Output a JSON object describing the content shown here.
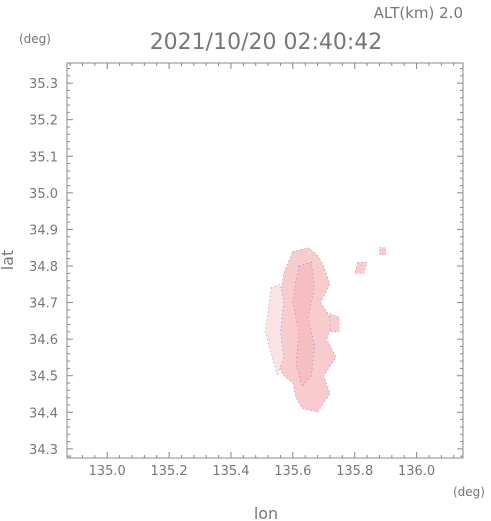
{
  "header": {
    "altitude_label": "ALT(km) 2.0",
    "timestamp": "2021/10/20 02:40:42"
  },
  "colors": {
    "frame": "#888888",
    "text": "#777777",
    "echo_light": "#fbe3e3",
    "echo_main": "#f8cccc",
    "echo_dense": "#f5bfc2",
    "edge_pixels": "#6a5acd"
  },
  "chart_data": {
    "type": "heatmap",
    "title": "",
    "xlabel": "lon",
    "ylabel": "lat",
    "x_unit": "(deg)",
    "y_unit": "(deg)",
    "xlim": [
      134.87,
      136.15
    ],
    "ylim": [
      34.275,
      35.355
    ],
    "x_ticks": [
      135.0,
      135.2,
      135.4,
      135.6,
      135.8,
      136.0
    ],
    "x_tick_labels": [
      "135.0",
      "135.2",
      "135.4",
      "135.6",
      "135.8",
      "136.0"
    ],
    "y_ticks": [
      34.3,
      34.4,
      34.5,
      34.6,
      34.7,
      34.8,
      34.9,
      35.0,
      35.1,
      35.2,
      35.3
    ],
    "y_tick_labels": [
      "34.3",
      "34.4",
      "34.5",
      "34.6",
      "34.7",
      "34.8",
      "34.9",
      "35.0",
      "35.1",
      "35.2",
      "35.3"
    ],
    "minor_ticks_per_major": 4,
    "grid": false,
    "echo_regions": [
      {
        "name": "main-echo",
        "level": "main",
        "polygon": [
          [
            135.6,
            34.84
          ],
          [
            135.65,
            34.85
          ],
          [
            135.68,
            34.83
          ],
          [
            135.7,
            34.8
          ],
          [
            135.72,
            34.75
          ],
          [
            135.69,
            34.7
          ],
          [
            135.73,
            34.65
          ],
          [
            135.71,
            34.6
          ],
          [
            135.74,
            34.55
          ],
          [
            135.7,
            34.5
          ],
          [
            135.72,
            34.45
          ],
          [
            135.68,
            34.4
          ],
          [
            135.63,
            34.41
          ],
          [
            135.61,
            34.44
          ],
          [
            135.6,
            34.48
          ],
          [
            135.57,
            34.5
          ],
          [
            135.54,
            34.55
          ],
          [
            135.53,
            34.6
          ],
          [
            135.54,
            34.65
          ],
          [
            135.56,
            34.72
          ],
          [
            135.57,
            34.78
          ],
          [
            135.59,
            34.82
          ]
        ]
      },
      {
        "name": "west-light-echo",
        "level": "light",
        "polygon": [
          [
            135.53,
            34.74
          ],
          [
            135.56,
            34.75
          ],
          [
            135.57,
            34.7
          ],
          [
            135.56,
            34.62
          ],
          [
            135.57,
            34.55
          ],
          [
            135.55,
            34.5
          ],
          [
            135.53,
            34.56
          ],
          [
            135.51,
            34.62
          ],
          [
            135.52,
            34.68
          ]
        ]
      },
      {
        "name": "central-dense-echo",
        "level": "dense",
        "polygon": [
          [
            135.62,
            34.8
          ],
          [
            135.66,
            34.81
          ],
          [
            135.67,
            34.74
          ],
          [
            135.65,
            34.66
          ],
          [
            135.67,
            34.58
          ],
          [
            135.66,
            34.5
          ],
          [
            135.63,
            34.47
          ],
          [
            135.61,
            34.53
          ],
          [
            135.62,
            34.62
          ],
          [
            135.6,
            34.7
          ],
          [
            135.61,
            34.76
          ]
        ]
      },
      {
        "name": "east-echo-fragment",
        "level": "main",
        "polygon": [
          [
            135.72,
            34.67
          ],
          [
            135.75,
            34.66
          ],
          [
            135.75,
            34.62
          ],
          [
            135.72,
            34.62
          ]
        ]
      },
      {
        "name": "northeast-echo-fragment",
        "level": "main",
        "polygon": [
          [
            135.81,
            34.81
          ],
          [
            135.84,
            34.81
          ],
          [
            135.83,
            34.78
          ],
          [
            135.8,
            34.78
          ]
        ]
      },
      {
        "name": "far-northeast-echo-fragment",
        "level": "main",
        "polygon": [
          [
            135.88,
            34.85
          ],
          [
            135.9,
            34.85
          ],
          [
            135.9,
            34.83
          ],
          [
            135.88,
            34.83
          ]
        ]
      }
    ]
  }
}
